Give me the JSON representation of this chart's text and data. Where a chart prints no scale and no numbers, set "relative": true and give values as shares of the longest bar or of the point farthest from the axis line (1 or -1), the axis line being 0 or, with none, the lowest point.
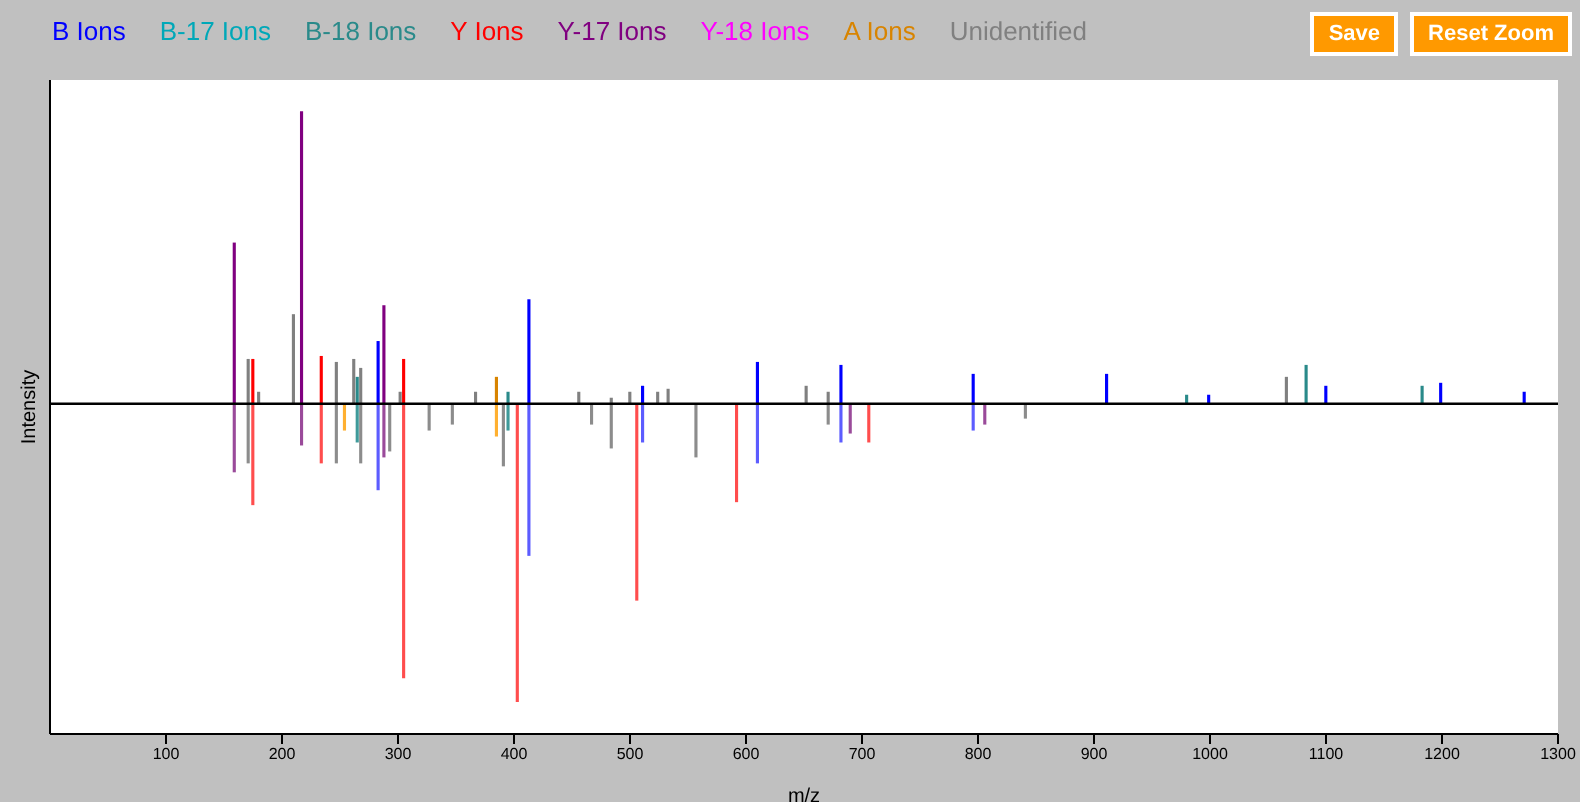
{
  "chart_data": {
    "type": "bar",
    "relative": true,
    "xlabel": "m/z",
    "ylabel": "Intensity",
    "xlim": [
      0,
      1300
    ],
    "xticks": [
      100,
      200,
      300,
      400,
      500,
      600,
      700,
      800,
      900,
      1000,
      1100,
      1200,
      1300
    ],
    "legend": "top left",
    "annotations": [
      "Save",
      "Reset Zoom"
    ],
    "series": [
      {
        "name": "B Ions",
        "color": "#0000ff",
        "x": [
          283,
          413,
          511,
          610,
          682,
          796,
          911,
          999,
          1100,
          1199,
          1271
        ],
        "values": [
          0.21,
          0.35,
          0.06,
          0.14,
          0.13,
          0.1,
          0.1,
          0.03,
          0.06,
          0.07,
          0.04
        ]
      },
      {
        "name": "B-17 Ions",
        "color": "#00a8b8"
      },
      {
        "name": "B-18 Ions",
        "color": "#2a8a8a",
        "x": [
          265,
          395,
          980,
          1083,
          1183
        ],
        "values": [
          0.09,
          0.04,
          0.03,
          0.13,
          0.06
        ]
      },
      {
        "name": "Y Ions",
        "color": "#ff0000",
        "x": [
          175,
          234,
          305
        ],
        "values": [
          0.15,
          0.16,
          0.15
        ]
      },
      {
        "name": "Y-17 Ions",
        "color": "#800080",
        "x": [
          159,
          217,
          288
        ],
        "values": [
          0.54,
          0.98,
          0.33
        ]
      },
      {
        "name": "Y-18 Ions",
        "color": "#ff00ff"
      },
      {
        "name": "A Ions",
        "color": "#d88400",
        "x": [
          385
        ],
        "values": [
          0.09
        ]
      },
      {
        "name": "Unidentified",
        "color": "#808080",
        "x": [
          171,
          180,
          210,
          247,
          262,
          268,
          302,
          367,
          456,
          484,
          500,
          524,
          533,
          652,
          671,
          1066
        ],
        "values": [
          0.15,
          0.04,
          0.3,
          0.14,
          0.15,
          0.12,
          0.04,
          0.04,
          0.04,
          0.02,
          0.04,
          0.04,
          0.05,
          0.06,
          0.04,
          0.09
        ]
      },
      {
        "color": "#5c5cff",
        "x": [
          283,
          413,
          511,
          610,
          682,
          796
        ],
        "values": [
          -0.29,
          -0.51,
          -0.13,
          -0.2,
          -0.13,
          -0.09
        ]
      },
      {
        "color": "#3f9a9a",
        "x": [
          265,
          395
        ],
        "values": [
          -0.13,
          -0.09
        ]
      },
      {
        "color": "#ff4d4d",
        "x": [
          175,
          234,
          305,
          403,
          506,
          592,
          706
        ],
        "values": [
          -0.34,
          -0.2,
          -0.92,
          -1,
          -0.66,
          -0.33,
          -0.13
        ]
      },
      {
        "color": "#9a4a9a",
        "x": [
          159,
          217,
          288,
          690,
          806
        ],
        "values": [
          -0.23,
          -0.14,
          -0.18,
          -0.1,
          -0.07
        ]
      },
      {
        "color": "#ffb030",
        "x": [
          254,
          385
        ],
        "values": [
          -0.09,
          -0.11
        ]
      },
      {
        "color": "#8c8c8c",
        "x": [
          171,
          247,
          268,
          293,
          327,
          347,
          391,
          467,
          484,
          557,
          671,
          841
        ],
        "values": [
          -0.2,
          -0.2,
          -0.2,
          -0.16,
          -0.09,
          -0.07,
          -0.21,
          -0.07,
          -0.15,
          -0.18,
          -0.07,
          -0.05
        ]
      }
    ]
  }
}
